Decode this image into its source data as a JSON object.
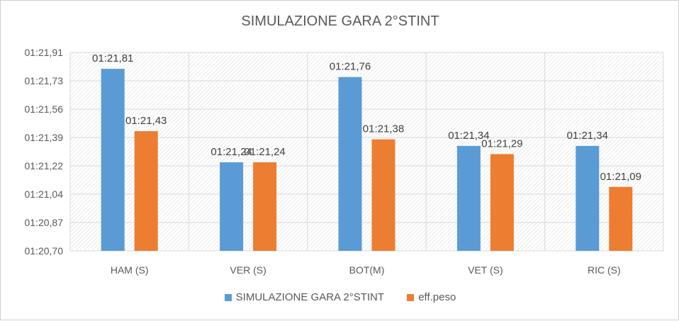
{
  "chart_data": {
    "type": "bar",
    "title": "SIMULAZIONE GARA 2°STINT",
    "categories": [
      "HAM (S)",
      "VER (S)",
      "BOT(M)",
      "VET (S)",
      "RIC (S)"
    ],
    "y_ticks": [
      "01:20,70",
      "01:20,87",
      "01:21,04",
      "01:21,22",
      "01:21,39",
      "01:21,56",
      "01:21,73",
      "01:21,91"
    ],
    "ylim_seconds": [
      80.7,
      81.91
    ],
    "series": [
      {
        "name": "SIMULAZIONE GARA 2°STINT",
        "color": "#5b9bd5",
        "values_seconds": [
          81.81,
          81.24,
          81.76,
          81.34,
          81.34
        ],
        "labels": [
          "01:21,81",
          "01:21,24",
          "01:21,76",
          "01:21,34",
          "01:21,34"
        ]
      },
      {
        "name": "eff.peso",
        "color": "#ed7d31",
        "values_seconds": [
          81.43,
          81.24,
          81.38,
          81.29,
          81.09
        ],
        "labels": [
          "01:21,43",
          "01:21,24",
          "01:21,38",
          "01:21,29",
          "01:21,09"
        ]
      }
    ],
    "grid": true,
    "legend_position": "bottom"
  }
}
